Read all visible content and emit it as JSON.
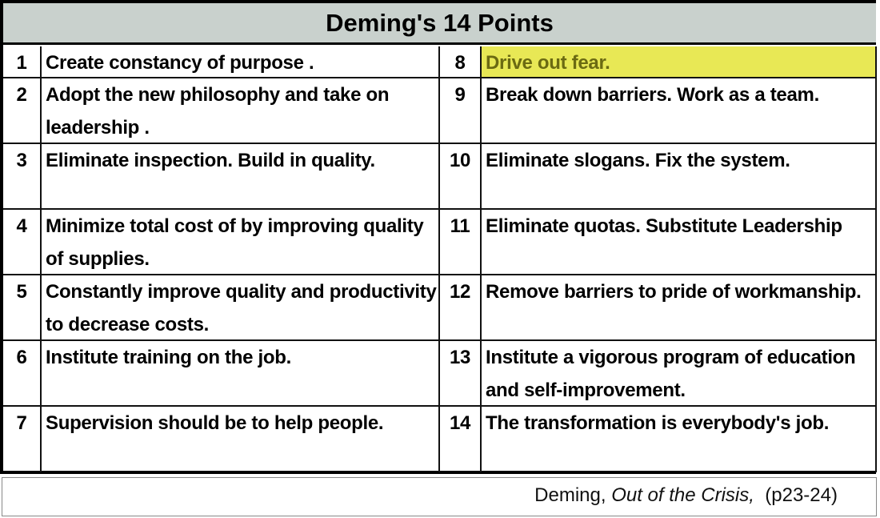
{
  "title": "Deming's 14 Points",
  "highlight_color": "#e8e855",
  "rows": [
    {
      "left_num": "1",
      "left_text": "Create constancy of purpose .",
      "right_num": "8",
      "right_text": "Drive out fear.",
      "right_highlighted": true
    },
    {
      "left_num": "2",
      "left_text": "Adopt the new philosophy and take on leadership .",
      "right_num": "9",
      "right_text": "Break down barriers.  Work as a team."
    },
    {
      "left_num": "3",
      "left_text": "Eliminate inspection.  Build in quality.",
      "right_num": "10",
      "right_text": "Eliminate slogans.  Fix the system."
    },
    {
      "left_num": "4",
      "left_text": "Minimize total cost of by improving quality of supplies.",
      "right_num": "11",
      "right_text": "Eliminate quotas.  Substitute Leadership"
    },
    {
      "left_num": "5",
      "left_text": "Constantly improve quality and productivity to decrease costs.",
      "right_num": "12",
      "right_text": "Remove barriers to pride of workmanship."
    },
    {
      "left_num": "6",
      "left_text": "Institute training on the job.",
      "right_num": "13",
      "right_text": "Institute a vigorous program of education and self-improvement."
    },
    {
      "left_num": "7",
      "left_text": "Supervision should be to help people.",
      "right_num": "14",
      "right_text": "The transformation is everybody's job."
    }
  ],
  "citation": {
    "author": "Deming, ",
    "work": "Out of the Crisis,",
    "pages": "  (p23-24)"
  }
}
